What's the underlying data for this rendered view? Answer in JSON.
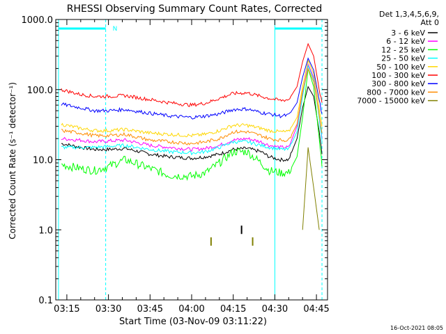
{
  "chart_data": {
    "type": "line",
    "title": "RHESSI Observing Summary Count Rates, Corrected",
    "xlabel": "Start Time (03-Nov-09 03:11:22)",
    "ylabel": "Corrected Count Rate (s⁻¹ detector⁻¹)",
    "y_scale": "log",
    "ylim": [
      0.1,
      1000
    ],
    "xlim": [
      "03:11",
      "04:49"
    ],
    "grid": false,
    "legend_position": "top-right",
    "legend_header": [
      "Det 1,3,4,5,6,9,",
      "Att 0"
    ],
    "timestamp": "16-Oct-2021 08:05",
    "x_ticks": [
      "03:15",
      "03:30",
      "03:45",
      "04:00",
      "04:15",
      "04:30",
      "04:45"
    ],
    "y_ticks": [
      "0.1",
      "1.0",
      "10.0",
      "100.0",
      "1000.0"
    ],
    "annotations": [
      {
        "text": "N",
        "color": "#00ffff",
        "at_time": "03:30"
      }
    ],
    "night_intervals": [
      {
        "start": "03:12",
        "end": "03:29"
      },
      {
        "start": "04:30",
        "end": "04:47"
      }
    ],
    "dashed_lines_at": [
      "03:29",
      "04:47"
    ],
    "solid_lines_at": [
      "03:12",
      "04:30"
    ],
    "x": [
      "03:13",
      "03:20",
      "03:25",
      "03:30",
      "03:36",
      "03:45",
      "03:52",
      "04:00",
      "04:05",
      "04:10",
      "04:15",
      "04:20",
      "04:25",
      "04:28",
      "04:32",
      "04:35",
      "04:38",
      "04:40",
      "04:42",
      "04:44",
      "04:46",
      "04:47"
    ],
    "series": [
      {
        "name": "3 - 6 keV",
        "color": "#000000",
        "values": [
          17,
          15,
          14,
          14,
          14.5,
          12,
          11,
          10.5,
          11,
          12,
          14,
          14.5,
          13,
          11,
          10,
          10,
          20,
          55,
          110,
          80,
          25,
          12
        ]
      },
      {
        "name": "6 - 12 keV",
        "color": "#ff00ff",
        "values": [
          20,
          19,
          18,
          18.5,
          19,
          16,
          15,
          14,
          14.5,
          16,
          19,
          20,
          18,
          16,
          15,
          15,
          30,
          90,
          230,
          150,
          40,
          20
        ]
      },
      {
        "name": "12 - 25 keV",
        "color": "#00ff00",
        "values": [
          8.5,
          7.5,
          7,
          8,
          10,
          7.5,
          6,
          5.8,
          6.5,
          9,
          13,
          13,
          9,
          7,
          6.5,
          6.5,
          11,
          40,
          200,
          110,
          20,
          8
        ]
      },
      {
        "name": "25 - 50 keV",
        "color": "#00ffff",
        "values": [
          15,
          15,
          15,
          15.5,
          16,
          14,
          13,
          12.5,
          13,
          15,
          18,
          18,
          16,
          15,
          14,
          14,
          25,
          80,
          220,
          140,
          40,
          18
        ]
      },
      {
        "name": "50 - 100 keV",
        "color": "#ffd700",
        "values": [
          32,
          28,
          26,
          26,
          27,
          24,
          23,
          22,
          23,
          26,
          31,
          31,
          28,
          26,
          25,
          25,
          40,
          110,
          260,
          170,
          55,
          30
        ]
      },
      {
        "name": "100 - 300 keV",
        "color": "#ff0000",
        "values": [
          100,
          85,
          80,
          80,
          82,
          72,
          65,
          60,
          64,
          75,
          88,
          90,
          80,
          75,
          70,
          72,
          110,
          250,
          450,
          300,
          100,
          65
        ]
      },
      {
        "name": "300 - 800 keV",
        "color": "#0000ff",
        "values": [
          62,
          55,
          50,
          50,
          52,
          46,
          42,
          40,
          42,
          45,
          52,
          53,
          47,
          45,
          42,
          43,
          65,
          150,
          280,
          190,
          70,
          45
        ]
      },
      {
        "name": "800 - 7000 keV",
        "color": "#ff8c00",
        "values": [
          26,
          24,
          22,
          22,
          23,
          19,
          18,
          17,
          18,
          20,
          25,
          25,
          22,
          20,
          19,
          19,
          32,
          95,
          200,
          130,
          45,
          24
        ]
      },
      {
        "name": "7000 - 15000 keV",
        "color": "#808000",
        "values": [
          null,
          null,
          null,
          null,
          null,
          null,
          null,
          null,
          null,
          null,
          null,
          null,
          null,
          null,
          null,
          null,
          null,
          1.0,
          15,
          4,
          1.0,
          null
        ]
      }
    ],
    "sparse_points": [
      {
        "time": "04:07",
        "value": 0.68,
        "color": "#808000"
      },
      {
        "time": "04:22",
        "value": 0.68,
        "color": "#808000"
      },
      {
        "time": "04:18",
        "value": 1.0,
        "color": "#000000"
      }
    ]
  }
}
